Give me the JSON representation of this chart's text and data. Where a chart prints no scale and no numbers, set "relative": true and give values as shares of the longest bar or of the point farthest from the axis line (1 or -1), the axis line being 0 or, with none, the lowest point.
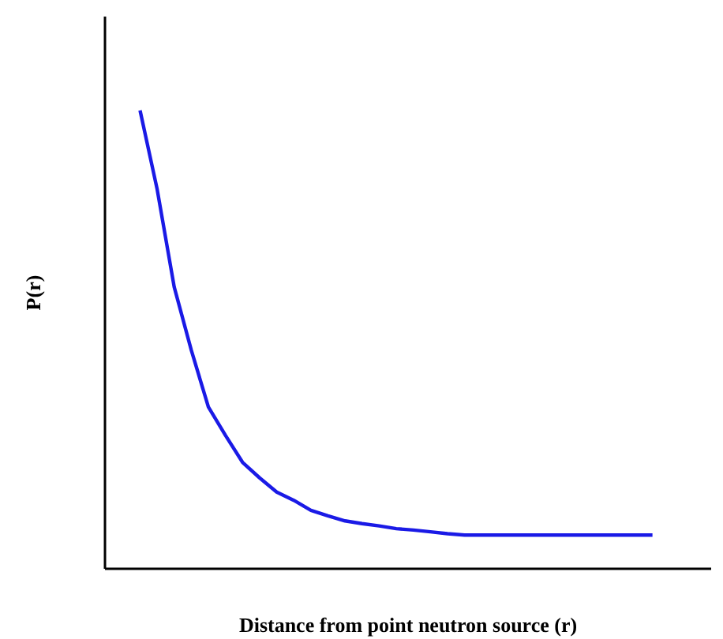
{
  "chart_data": {
    "type": "line",
    "relative": true,
    "xlabel": "Distance from point neutron source (r)",
    "ylabel": "P(r)",
    "grid": false,
    "marker": "none",
    "line_style": "solid",
    "categories": [
      null,
      null,
      null,
      null,
      null,
      null,
      null,
      null,
      null,
      null,
      null,
      null,
      null,
      null,
      null,
      null,
      null,
      null,
      null,
      null,
      null,
      null,
      null,
      null,
      null,
      null,
      null,
      null,
      null,
      null,
      null
    ],
    "series": [
      {
        "color": "#1a1ae6",
        "values": [
          1.0,
          0.828,
          0.614,
          0.476,
          0.352,
          0.29,
          0.231,
          0.197,
          0.166,
          0.148,
          0.126,
          0.114,
          0.103,
          0.097,
          0.092,
          0.086,
          0.083,
          0.079,
          0.075,
          0.072,
          0.072,
          0.072,
          0.072,
          0.072,
          0.072,
          0.072,
          0.072,
          0.072,
          0.072,
          0.072,
          0.072
        ]
      }
    ]
  }
}
